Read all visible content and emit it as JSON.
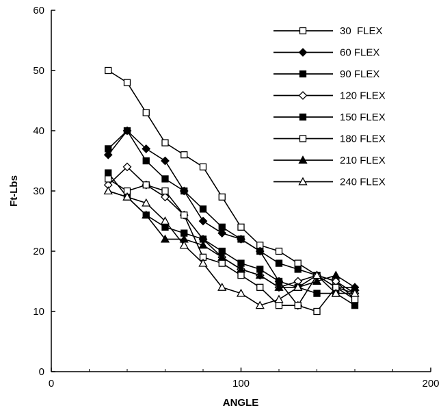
{
  "chart_data": {
    "type": "line",
    "title": "",
    "xlabel": "ANGLE",
    "ylabel": "Ft-Lbs",
    "xlim": [
      0,
      200
    ],
    "ylim": [
      0,
      60
    ],
    "x_ticks": [
      0,
      100,
      200
    ],
    "y_ticks": [
      0,
      10,
      20,
      30,
      40,
      50,
      60
    ],
    "grid": false,
    "legend_position": "top-right",
    "x": [
      30,
      40,
      50,
      60,
      70,
      80,
      90,
      100,
      110,
      120,
      130,
      140,
      150,
      160
    ],
    "series": [
      {
        "name": "30  FLEX",
        "marker": "square-open",
        "values": [
          50,
          48,
          43,
          38,
          36,
          34,
          29,
          24,
          21,
          20,
          18,
          16,
          15,
          12
        ]
      },
      {
        "name": "60 FLEX",
        "marker": "diamond-filled",
        "values": [
          36,
          40,
          37,
          35,
          30,
          25,
          23,
          22,
          20,
          15,
          11,
          16,
          14,
          14
        ]
      },
      {
        "name": "90 FLEX",
        "marker": "square-filled",
        "values": [
          37,
          40,
          35,
          32,
          30,
          27,
          24,
          22,
          20,
          18,
          17,
          16,
          14,
          13
        ]
      },
      {
        "name": "120 FLEX",
        "marker": "diamond-open",
        "values": [
          31,
          34,
          31,
          29,
          26,
          22,
          19,
          17,
          16,
          14,
          15,
          16,
          15,
          13
        ]
      },
      {
        "name": "150 FLEX",
        "marker": "square-filled",
        "values": [
          33,
          29,
          26,
          24,
          23,
          22,
          20,
          18,
          17,
          15,
          14,
          13,
          13,
          11
        ]
      },
      {
        "name": "180 FLEX",
        "marker": "square-open",
        "values": [
          32,
          30,
          31,
          30,
          26,
          19,
          18,
          16,
          14,
          11,
          11,
          10,
          14,
          12
        ]
      },
      {
        "name": "210 FLEX",
        "marker": "triangle-filled",
        "values": [
          30,
          29,
          26,
          22,
          22,
          21,
          19,
          17,
          16,
          14,
          14,
          15,
          16,
          14
        ]
      },
      {
        "name": "240 FLEX",
        "marker": "triangle-open",
        "values": [
          30,
          29,
          28,
          25,
          21,
          18,
          14,
          13,
          11,
          12,
          14,
          16,
          13,
          13
        ]
      }
    ]
  }
}
